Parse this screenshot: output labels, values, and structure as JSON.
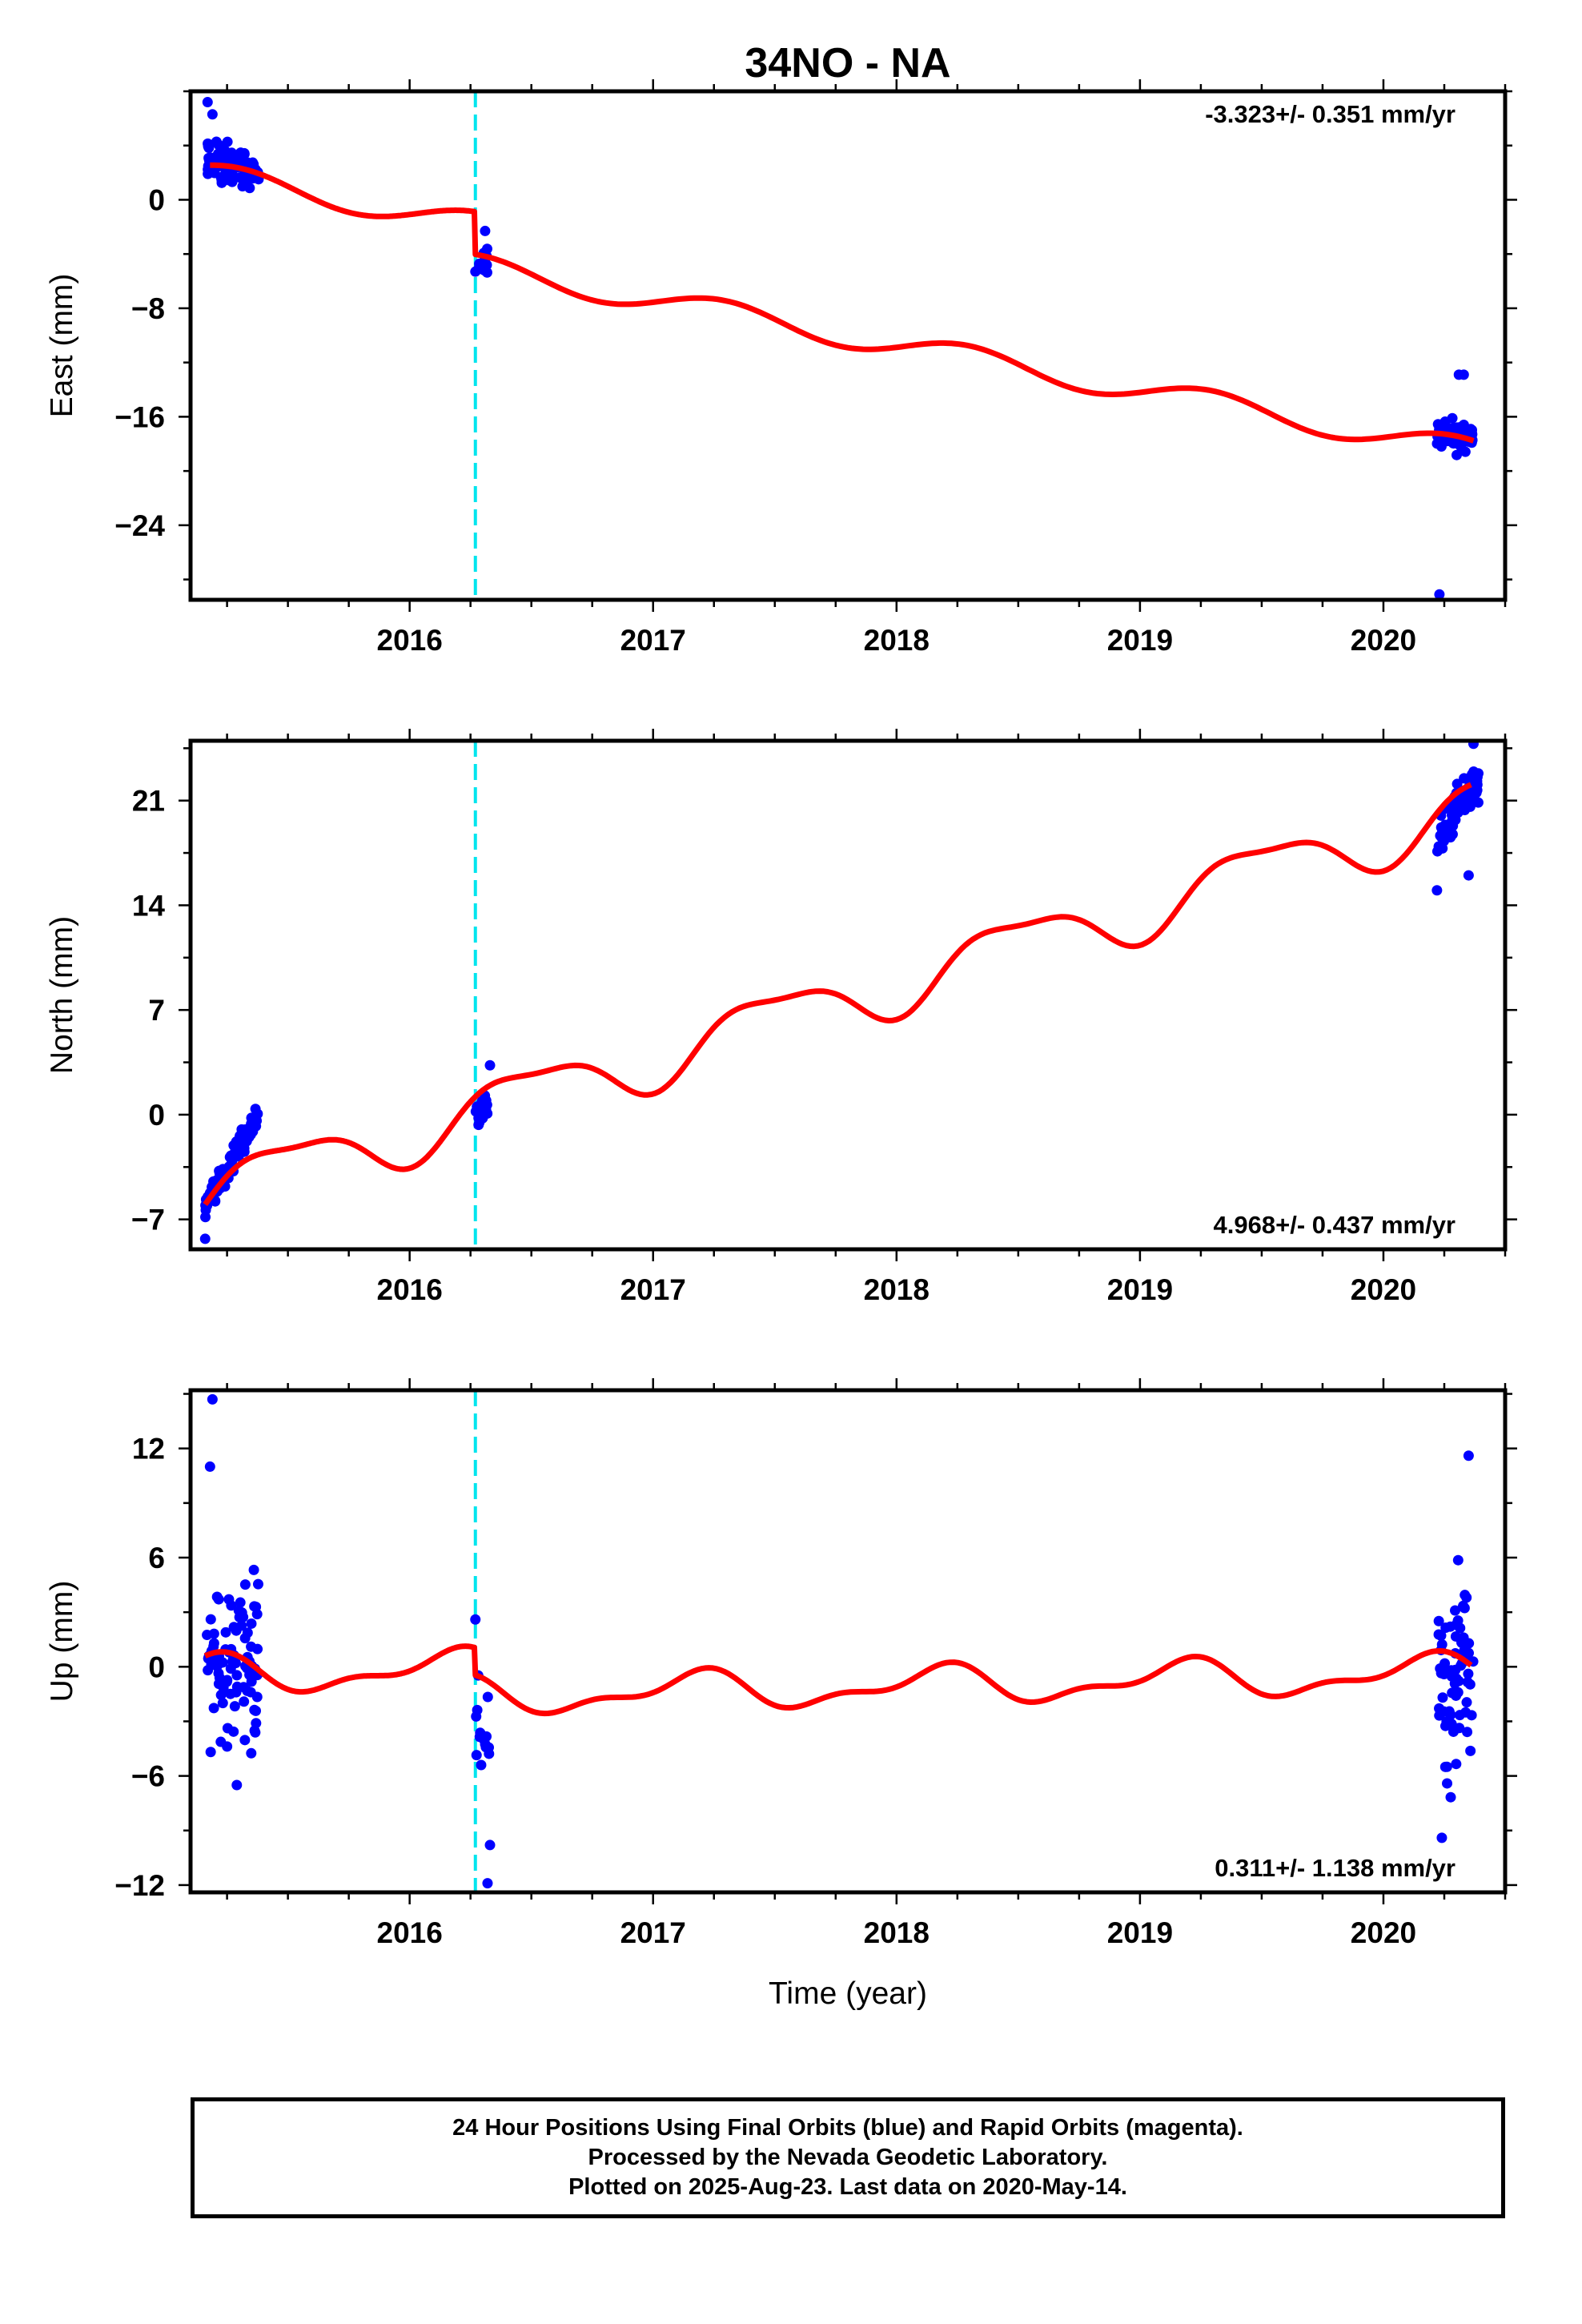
{
  "title": "34NO - NA",
  "xlabel": "Time (year)",
  "footer": {
    "line1": "24 Hour Positions Using Final Orbits (blue) and Rapid Orbits (magenta).",
    "line2": "Processed by the Nevada Geodetic Laboratory.",
    "line3": "Plotted on 2025-Aug-23. Last data on 2020-May-14."
  },
  "colors": {
    "data_points": "#0000ff",
    "model_fit": "#ff0000",
    "equipment_change": "#00e5ee",
    "axes": "#000000"
  },
  "chart_data": [
    {
      "type": "scatter",
      "panel": "east",
      "ylabel": "East (mm)",
      "rate_label": "-3.323+/- 0.351 mm/yr",
      "rate_position": "top-right",
      "xlim": [
        2015.1,
        2020.5
      ],
      "ylim": [
        -29.5,
        8.0
      ],
      "xticks": [
        "2016",
        "2017",
        "2018",
        "2019",
        "2020"
      ],
      "yticks": [
        "0",
        "-8",
        "-16",
        "-24"
      ],
      "ytick_values": [
        0,
        -8,
        -16,
        -24
      ],
      "ytick_minor": 4,
      "equipment_change_x": 2016.27,
      "model": {
        "segments": [
          {
            "t0": 2015.18,
            "t1": 2016.27,
            "offset": 2.55
          },
          {
            "t0": 2016.27,
            "t1": 2020.37,
            "offset": -0.6
          }
        ],
        "ref_t": 2015.18,
        "rate": -3.323,
        "annual": {
          "amp": 0.9,
          "phase": 0.9
        },
        "semiannual": {
          "amp": 0.0,
          "phase": 0.0
        }
      },
      "clusters": [
        {
          "t0": 2015.17,
          "t1": 2015.38,
          "n": 90,
          "y_base": 2.8,
          "y_slope": -3.8,
          "spread": 1.2
        },
        {
          "t0": 2016.27,
          "t1": 2016.32,
          "n": 16,
          "y_base": -4.6,
          "y_slope": 0.0,
          "spread": 0.7
        },
        {
          "t0": 2020.22,
          "t1": 2020.37,
          "n": 85,
          "y_base": -17.1,
          "y_slope": -2.0,
          "spread": 0.8
        }
      ],
      "outliers": [
        {
          "x": 2020.23,
          "y": -29.1
        },
        {
          "x": 2020.31,
          "y": -12.9
        },
        {
          "x": 2020.33,
          "y": -12.9
        },
        {
          "x": 2016.31,
          "y": -2.3
        },
        {
          "x": 2015.17,
          "y": 7.2
        },
        {
          "x": 2015.19,
          "y": 6.3
        }
      ]
    },
    {
      "type": "scatter",
      "panel": "north",
      "ylabel": "North (mm)",
      "rate_label": "4.968+/- 0.437 mm/yr",
      "rate_position": "bottom-right",
      "xlim": [
        2015.1,
        2020.5
      ],
      "ylim": [
        -9.0,
        25.0
      ],
      "xticks": [
        "2016",
        "2017",
        "2018",
        "2019",
        "2020"
      ],
      "yticks": [
        "21",
        "14",
        "7",
        "0",
        "-7"
      ],
      "ytick_values": [
        21,
        14,
        7,
        0,
        -7
      ],
      "ytick_minor": 3.5,
      "equipment_change_x": 2016.27,
      "model": {
        "segments": [
          {
            "t0": 2015.16,
            "t1": 2016.27,
            "offset": -6.0
          },
          {
            "t0": 2016.27,
            "t1": 2020.36,
            "offset": -6.0
          }
        ],
        "ref_t": 2015.16,
        "rate": 4.968,
        "annual": {
          "amp": 1.9,
          "phase": -0.5
        },
        "semiannual": {
          "amp": 0.6,
          "phase": 0.3
        }
      },
      "clusters": [
        {
          "t0": 2015.16,
          "t1": 2015.38,
          "n": 90,
          "y_base": -6.0,
          "y_slope": 27.0,
          "spread": 0.8
        },
        {
          "t0": 2016.27,
          "t1": 2016.32,
          "n": 16,
          "y_base": 0.4,
          "y_slope": 0.0,
          "spread": 0.9
        },
        {
          "t0": 2020.22,
          "t1": 2020.39,
          "n": 85,
          "y_base": 18.5,
          "y_slope": 22.0,
          "spread": 1.2
        }
      ],
      "outliers": [
        {
          "x": 2015.16,
          "y": -8.3
        },
        {
          "x": 2016.33,
          "y": 3.3
        },
        {
          "x": 2020.22,
          "y": 15.0
        },
        {
          "x": 2020.35,
          "y": 16.0
        },
        {
          "x": 2020.37,
          "y": 24.8
        }
      ]
    },
    {
      "type": "scatter",
      "panel": "up",
      "ylabel": "Up (mm)",
      "rate_label": "0.311+/- 1.138 mm/yr",
      "rate_position": "bottom-right",
      "xlim": [
        2015.1,
        2020.5
      ],
      "ylim": [
        -12.4,
        15.2
      ],
      "xticks": [
        "2016",
        "2017",
        "2018",
        "2019",
        "2020"
      ],
      "yticks": [
        "12",
        "6",
        "0",
        "-6",
        "-12"
      ],
      "ytick_values": [
        12,
        6,
        0,
        -6,
        -12
      ],
      "ytick_minor": 3,
      "equipment_change_x": 2016.27,
      "model": {
        "segments": [
          {
            "t0": 2015.16,
            "t1": 2016.27,
            "offset": 0.6
          },
          {
            "t0": 2016.27,
            "t1": 2020.36,
            "offset": -0.9
          }
        ],
        "ref_t": 2015.16,
        "rate": 0.311,
        "annual": {
          "amp": 0.9,
          "phase": 1.5
        },
        "semiannual": {
          "amp": 0.45,
          "phase": 0.4
        }
      },
      "clusters": [
        {
          "t0": 2015.16,
          "t1": 2015.38,
          "n": 90,
          "y_base": 0.3,
          "y_slope": 0.0,
          "spread": 3.6
        },
        {
          "t0": 2016.27,
          "t1": 2016.33,
          "n": 14,
          "y_base": -3.5,
          "y_slope": 0.0,
          "spread": 2.5
        },
        {
          "t0": 2020.22,
          "t1": 2020.37,
          "n": 70,
          "y_base": -0.3,
          "y_slope": 0.0,
          "spread": 4.2
        }
      ],
      "outliers": [
        {
          "x": 2015.19,
          "y": 14.7
        },
        {
          "x": 2015.18,
          "y": 11.0
        },
        {
          "x": 2015.29,
          "y": -6.5
        },
        {
          "x": 2016.32,
          "y": -11.9
        },
        {
          "x": 2016.33,
          "y": -9.8
        },
        {
          "x": 2020.24,
          "y": -9.4
        },
        {
          "x": 2020.35,
          "y": 11.6
        },
        {
          "x": 2016.27,
          "y": 2.6
        }
      ]
    }
  ]
}
